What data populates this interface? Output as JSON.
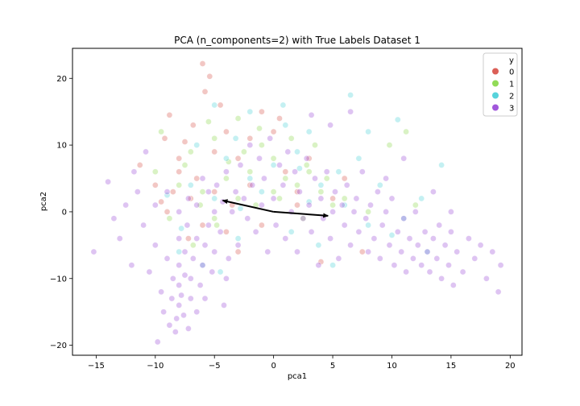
{
  "chart_data": {
    "type": "scatter",
    "title": "PCA (n_components=2) with True Labels Dataset 1",
    "xlabel": "pca1",
    "ylabel": "pca2",
    "xlim": [
      -17,
      21
    ],
    "ylim": [
      -21.5,
      24.5
    ],
    "xticks": [
      -15,
      -10,
      -5,
      0,
      5,
      10,
      15,
      20
    ],
    "yticks": [
      -20,
      -10,
      0,
      10,
      20
    ],
    "grid": false,
    "legend": {
      "title": "y",
      "placement": "top-right",
      "entries": [
        "0",
        "1",
        "2",
        "3"
      ]
    },
    "colors": {
      "0": "#db5f57",
      "1": "#91db57",
      "2": "#57d3db",
      "3": "#a157db"
    },
    "point_alpha": 0.35,
    "series": [
      {
        "name": "0",
        "points": [
          [
            -6,
            22.2
          ],
          [
            -5.4,
            20.3
          ],
          [
            -8.8,
            14.5
          ],
          [
            -11.3,
            7
          ],
          [
            -9.2,
            11
          ],
          [
            -7.5,
            10.5
          ],
          [
            -4,
            12
          ],
          [
            -3,
            8
          ],
          [
            -1,
            15
          ],
          [
            0,
            12
          ],
          [
            -6.5,
            5
          ],
          [
            -8,
            6
          ],
          [
            -10,
            4
          ],
          [
            -5,
            3
          ],
          [
            -3.5,
            1
          ],
          [
            -7,
            2
          ],
          [
            -9,
            0
          ],
          [
            -6,
            -2
          ],
          [
            -4,
            -3
          ],
          [
            -2,
            4
          ],
          [
            1,
            6
          ],
          [
            2,
            3
          ],
          [
            3,
            8
          ],
          [
            5,
            2
          ],
          [
            7.5,
            -6
          ],
          [
            -8,
            8
          ],
          [
            -5,
            9
          ],
          [
            -2,
            11
          ],
          [
            0.5,
            14
          ],
          [
            -6.8,
            13
          ],
          [
            -9.5,
            1.5
          ],
          [
            -7.2,
            -4
          ],
          [
            -3,
            -6
          ],
          [
            4,
            -7.5
          ],
          [
            2,
            1
          ],
          [
            -1,
            -2
          ],
          [
            6,
            5
          ],
          [
            -4.5,
            16
          ],
          [
            -5.8,
            18
          ],
          [
            -8.5,
            3
          ]
        ]
      },
      {
        "name": "1",
        "points": [
          [
            -9.5,
            12
          ],
          [
            -7,
            9
          ],
          [
            -5,
            11
          ],
          [
            -3,
            14
          ],
          [
            -1,
            10
          ],
          [
            0,
            8
          ],
          [
            1,
            5
          ],
          [
            2,
            4
          ],
          [
            -2,
            6
          ],
          [
            -4,
            5
          ],
          [
            -6,
            3
          ],
          [
            -8,
            4
          ],
          [
            -10,
            6
          ],
          [
            -5,
            -1
          ],
          [
            -3,
            2
          ],
          [
            3,
            6
          ],
          [
            4,
            3
          ],
          [
            6,
            2
          ],
          [
            9.8,
            10
          ],
          [
            11.2,
            12
          ],
          [
            -7.5,
            7
          ],
          [
            -6.2,
            1
          ],
          [
            -4.8,
            -2
          ],
          [
            -1.5,
            1
          ],
          [
            0.5,
            2
          ],
          [
            2.5,
            -1
          ],
          [
            5,
            1
          ],
          [
            -8.8,
            -1
          ],
          [
            -2.5,
            9
          ],
          [
            1.5,
            11
          ],
          [
            3.5,
            10
          ],
          [
            -6.8,
            -5
          ],
          [
            -5.5,
            13.5
          ],
          [
            0,
            3
          ],
          [
            4.5,
            5
          ],
          [
            8,
            0
          ],
          [
            12,
            1
          ],
          [
            -3.8,
            7.5
          ],
          [
            -1.2,
            12.5
          ],
          [
            2.8,
            7
          ]
        ]
      },
      {
        "name": "2",
        "points": [
          [
            -5,
            16
          ],
          [
            -2,
            15
          ],
          [
            1,
            13
          ],
          [
            3,
            12
          ],
          [
            6.5,
            17.5
          ],
          [
            8,
            12
          ],
          [
            10.5,
            13.8
          ],
          [
            -4,
            8
          ],
          [
            -2,
            5
          ],
          [
            0,
            7
          ],
          [
            2,
            9
          ],
          [
            4,
            4
          ],
          [
            6,
            1
          ],
          [
            8,
            -2
          ],
          [
            11,
            -1
          ],
          [
            -7,
            4
          ],
          [
            -5,
            2
          ],
          [
            -3,
            -4
          ],
          [
            -8,
            -6
          ],
          [
            -6,
            -8
          ],
          [
            1.5,
            -3
          ],
          [
            3.8,
            -5
          ],
          [
            -1,
            3
          ],
          [
            5.5,
            6
          ],
          [
            9,
            4
          ],
          [
            12.5,
            2
          ],
          [
            14.2,
            7
          ],
          [
            -4.5,
            -9
          ],
          [
            -9,
            2.5
          ],
          [
            -6.5,
            10
          ],
          [
            0.8,
            16
          ],
          [
            7.2,
            8
          ],
          [
            10,
            -3.5
          ],
          [
            -2.8,
            0.5
          ],
          [
            3,
            1.5
          ],
          [
            -7.8,
            -2.5
          ],
          [
            5,
            -8
          ],
          [
            13,
            -6
          ],
          [
            -3.2,
            11
          ],
          [
            2.2,
            6.5
          ]
        ]
      },
      {
        "name": "3",
        "points": [
          [
            -15.2,
            -6
          ],
          [
            -14,
            4.5
          ],
          [
            -13,
            -4
          ],
          [
            -12.5,
            1
          ],
          [
            -12,
            -8
          ],
          [
            -11.5,
            3
          ],
          [
            -11,
            -2
          ],
          [
            -10.5,
            -9
          ],
          [
            -10,
            1
          ],
          [
            -10,
            -5
          ],
          [
            -9.5,
            -12
          ],
          [
            -9.3,
            -15
          ],
          [
            -9,
            -7
          ],
          [
            -9,
            3
          ],
          [
            -8.8,
            -17
          ],
          [
            -8.6,
            -13
          ],
          [
            -8.5,
            -10
          ],
          [
            -8.3,
            -18
          ],
          [
            -8.2,
            -16
          ],
          [
            -8,
            -14
          ],
          [
            -8,
            -11
          ],
          [
            -8,
            -8
          ],
          [
            -8,
            -4
          ],
          [
            -8,
            0
          ],
          [
            -7.8,
            -12.5
          ],
          [
            -7.6,
            -15.5
          ],
          [
            -7.5,
            -9.5
          ],
          [
            -7.5,
            -6
          ],
          [
            -7.3,
            -2
          ],
          [
            -7.2,
            2
          ],
          [
            -7,
            -13
          ],
          [
            -7,
            -10
          ],
          [
            -6.8,
            -7
          ],
          [
            -6.5,
            -4
          ],
          [
            -6.5,
            1
          ],
          [
            -6.2,
            -11
          ],
          [
            -6,
            -8
          ],
          [
            -6,
            5
          ],
          [
            -5.8,
            -5
          ],
          [
            -5.5,
            -2
          ],
          [
            -5.5,
            3
          ],
          [
            -5.2,
            -9
          ],
          [
            -5,
            0
          ],
          [
            -5,
            -6
          ],
          [
            -4.8,
            4
          ],
          [
            -4.5,
            -3
          ],
          [
            -4.3,
            1.5
          ],
          [
            -4,
            -10
          ],
          [
            -4,
            6
          ],
          [
            -3.8,
            -7
          ],
          [
            -3.5,
            0
          ],
          [
            -3.2,
            3
          ],
          [
            -3,
            -5
          ],
          [
            -2.8,
            7
          ],
          [
            -2.5,
            2
          ],
          [
            -2.2,
            -1
          ],
          [
            -2,
            10
          ],
          [
            -1.8,
            4
          ],
          [
            -1.5,
            -3
          ],
          [
            -1.2,
            8
          ],
          [
            -1,
            1
          ],
          [
            -0.8,
            5
          ],
          [
            -0.5,
            -6
          ],
          [
            -0.3,
            11
          ],
          [
            0,
            2
          ],
          [
            0.2,
            -2
          ],
          [
            0.5,
            7
          ],
          [
            0.8,
            4
          ],
          [
            1,
            -4
          ],
          [
            1.2,
            9
          ],
          [
            1.5,
            0
          ],
          [
            1.8,
            6
          ],
          [
            2,
            -6
          ],
          [
            2.2,
            3
          ],
          [
            2.5,
            -1
          ],
          [
            2.8,
            8
          ],
          [
            3,
            1
          ],
          [
            3.2,
            -3
          ],
          [
            3.5,
            5
          ],
          [
            3.8,
            -8
          ],
          [
            4,
            2
          ],
          [
            4.2,
            -1
          ],
          [
            4.5,
            6
          ],
          [
            4.8,
            -4
          ],
          [
            5,
            0
          ],
          [
            5.2,
            3
          ],
          [
            5.5,
            -7
          ],
          [
            5.8,
            1
          ],
          [
            6,
            -2
          ],
          [
            6.2,
            4
          ],
          [
            6.5,
            -5
          ],
          [
            6.8,
            0
          ],
          [
            7,
            2
          ],
          [
            7.2,
            -3
          ],
          [
            7.5,
            6
          ],
          [
            7.8,
            -1
          ],
          [
            8,
            -6
          ],
          [
            8.2,
            1
          ],
          [
            8.5,
            -4
          ],
          [
            8.8,
            3
          ],
          [
            9,
            -7
          ],
          [
            9.2,
            -2
          ],
          [
            9.5,
            0
          ],
          [
            9.8,
            -5
          ],
          [
            10,
            2
          ],
          [
            10.2,
            -8
          ],
          [
            10.5,
            -3
          ],
          [
            10.8,
            -6
          ],
          [
            11,
            -1
          ],
          [
            11.2,
            -9
          ],
          [
            11.5,
            -4
          ],
          [
            11.8,
            -7
          ],
          [
            12,
            0
          ],
          [
            12.2,
            -5
          ],
          [
            12.5,
            -8
          ],
          [
            12.8,
            -3
          ],
          [
            13,
            -6
          ],
          [
            13.2,
            -9
          ],
          [
            13.5,
            -4
          ],
          [
            13.8,
            -7
          ],
          [
            14,
            -2
          ],
          [
            14.2,
            -10
          ],
          [
            14.5,
            -5
          ],
          [
            14.8,
            -8
          ],
          [
            15,
            -3
          ],
          [
            15.2,
            -11
          ],
          [
            15.5,
            -6
          ],
          [
            16,
            -9
          ],
          [
            16.5,
            -4
          ],
          [
            17,
            -7
          ],
          [
            17.5,
            -5
          ],
          [
            18,
            -10
          ],
          [
            18.5,
            -6
          ],
          [
            19,
            -12
          ],
          [
            19.2,
            -8
          ],
          [
            -6.5,
            -15
          ],
          [
            -7.2,
            -17.5
          ],
          [
            -5.8,
            -13
          ],
          [
            -9.8,
            -19.5
          ],
          [
            -4.2,
            -14
          ],
          [
            6.5,
            15
          ],
          [
            4.8,
            13
          ],
          [
            3.2,
            14.5
          ],
          [
            9.5,
            5
          ],
          [
            11,
            8
          ],
          [
            13.5,
            3
          ],
          [
            15,
            0
          ],
          [
            -11.8,
            6
          ],
          [
            -10.8,
            9
          ],
          [
            -13.5,
            -1
          ]
        ]
      }
    ],
    "arrows": [
      {
        "from": [
          0,
          0
        ],
        "to": [
          -4.3,
          1.7
        ]
      },
      {
        "from": [
          0,
          0
        ],
        "to": [
          4.6,
          -0.6
        ]
      }
    ]
  }
}
